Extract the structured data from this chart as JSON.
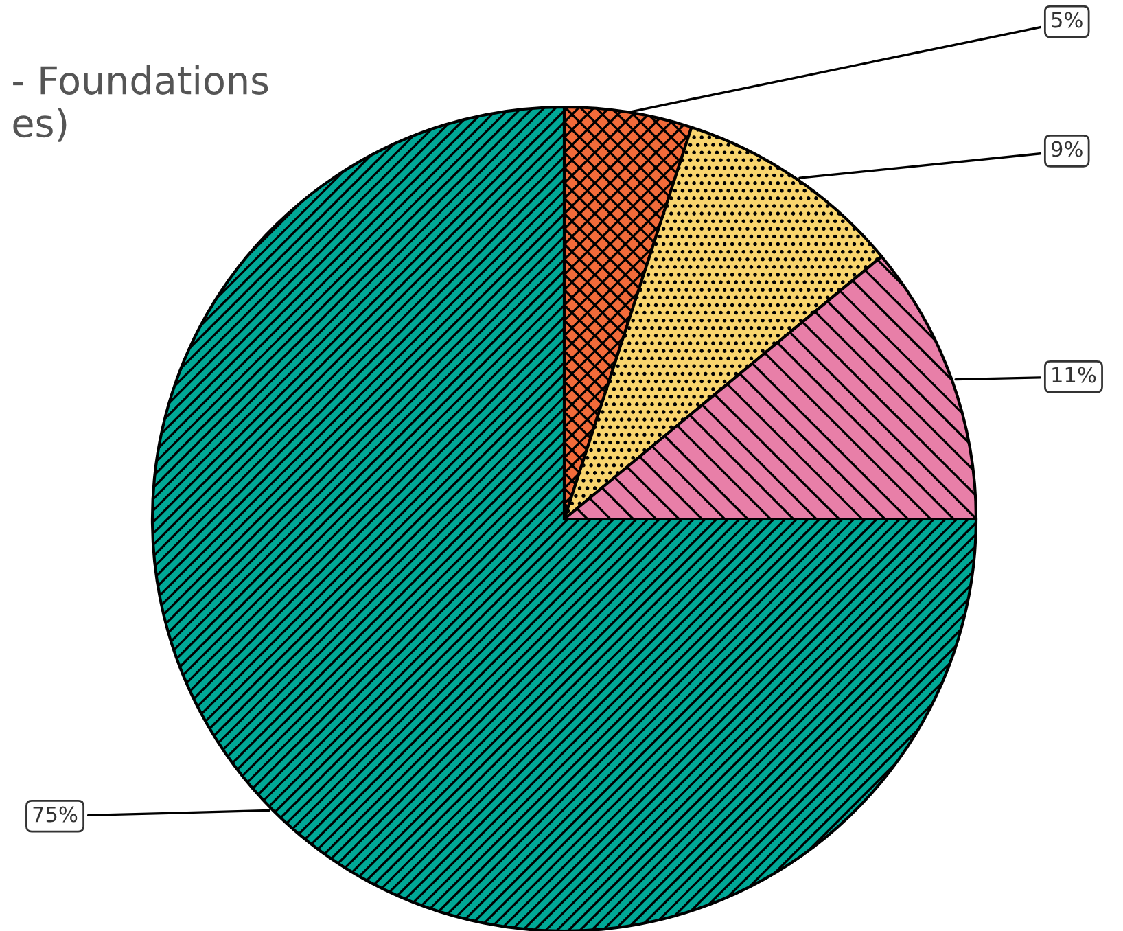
{
  "chart_data": {
    "type": "pie",
    "title": "- Foundations\nes)",
    "categories": [
      null,
      null,
      null,
      null
    ],
    "values": [
      5,
      9,
      11,
      75
    ],
    "colors": [
      "#f26b3a",
      "#f9d56e",
      "#e87fa8",
      "#00a896"
    ],
    "value_labels": [
      "5%",
      "9%",
      "11%",
      "75%"
    ]
  }
}
